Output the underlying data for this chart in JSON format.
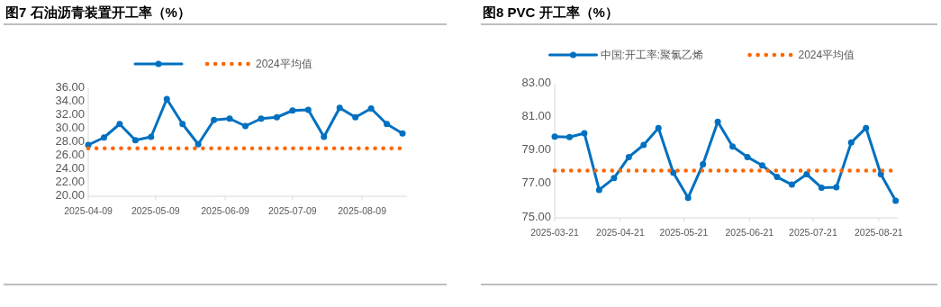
{
  "chart_data": [
    {
      "type": "line",
      "title": "图7  石油沥青装置开工率（%）",
      "legend": "top",
      "marker": "circle",
      "grid": false,
      "x": [
        "2025-04-09",
        "2025-04-16",
        "2025-04-23",
        "2025-04-30",
        "2025-05-07",
        "2025-05-14",
        "2025-05-21",
        "2025-05-28",
        "2025-06-04",
        "2025-06-11",
        "2025-06-18",
        "2025-06-25",
        "2025-07-02",
        "2025-07-09",
        "2025-07-16",
        "2025-07-23",
        "2025-07-30",
        "2025-08-06",
        "2025-08-13",
        "2025-08-20",
        "2025-08-27"
      ],
      "series": [
        {
          "color": "#0070c0",
          "values": [
            27.6,
            28.7,
            30.7,
            28.3,
            28.8,
            34.4,
            30.7,
            27.7,
            31.3,
            31.5,
            30.4,
            31.5,
            31.7,
            32.7,
            32.8,
            28.8,
            33.1,
            31.7,
            33.0,
            30.7,
            29.3
          ]
        },
        {
          "name": "2024平均值",
          "color": "#ff6600",
          "line_style": "dotted",
          "marker": "none",
          "values": [
            27.1,
            27.1,
            27.1,
            27.1,
            27.1,
            27.1,
            27.1,
            27.1,
            27.1,
            27.1,
            27.1,
            27.1,
            27.1,
            27.1,
            27.1,
            27.1,
            27.1,
            27.1,
            27.1,
            27.1,
            27.1
          ]
        }
      ],
      "xlim": [
        "2025-04-09",
        "2025-08-29"
      ],
      "xticks": [
        "2025-04-09",
        "2025-05-09",
        "2025-06-09",
        "2025-07-09",
        "2025-08-09"
      ],
      "ylim": [
        20,
        36
      ],
      "yticks": [
        {
          "value": 20,
          "label": "20.00"
        },
        {
          "value": 22,
          "label": "22.00"
        },
        {
          "value": 24,
          "label": "24.00"
        },
        {
          "value": 26,
          "label": "26.00"
        },
        {
          "value": 28,
          "label": "28.00"
        },
        {
          "value": 30,
          "label": "30.00"
        },
        {
          "value": 32,
          "label": "32.00"
        },
        {
          "value": 34,
          "label": "34.00"
        },
        {
          "value": 36,
          "label": "36.00"
        }
      ]
    },
    {
      "type": "line",
      "title": "图8  PVC 开工率（%）",
      "legend": "top",
      "marker": "circle",
      "grid": false,
      "x": [
        "2025-03-21",
        "2025-03-28",
        "2025-04-04",
        "2025-04-11",
        "2025-04-18",
        "2025-04-25",
        "2025-05-02",
        "2025-05-09",
        "2025-05-16",
        "2025-05-23",
        "2025-05-30",
        "2025-06-06",
        "2025-06-13",
        "2025-06-20",
        "2025-06-27",
        "2025-07-04",
        "2025-07-11",
        "2025-07-18",
        "2025-07-25",
        "2025-08-01",
        "2025-08-08",
        "2025-08-15",
        "2025-08-22",
        "2025-08-29"
      ],
      "series": [
        {
          "name": "中国:开工率:聚氯乙烯",
          "color": "#0070c0",
          "values": [
            79.85,
            79.82,
            80.05,
            76.67,
            77.37,
            78.63,
            79.35,
            80.36,
            77.7,
            76.2,
            78.2,
            80.73,
            79.26,
            78.63,
            78.13,
            77.44,
            76.98,
            77.6,
            76.8,
            76.83,
            79.49,
            80.36,
            77.6,
            76.02
          ]
        },
        {
          "name": "2024平均值",
          "color": "#ff6600",
          "line_style": "dotted",
          "marker": "none",
          "values": [
            77.82,
            77.82,
            77.82,
            77.82,
            77.82,
            77.82,
            77.82,
            77.82,
            77.82,
            77.82,
            77.82,
            77.82,
            77.82,
            77.82,
            77.82,
            77.82,
            77.82,
            77.82,
            77.82,
            77.82,
            77.82,
            77.82,
            77.82,
            77.82
          ]
        }
      ],
      "xlim": [
        "2025-03-21",
        "2025-08-30"
      ],
      "xticks": [
        "2025-03-21",
        "2025-04-21",
        "2025-05-21",
        "2025-06-21",
        "2025-07-21",
        "2025-08-21"
      ],
      "ylim": [
        75,
        83
      ],
      "yticks": [
        {
          "value": 75,
          "label": "75.00"
        },
        {
          "value": 77,
          "label": "77.00"
        },
        {
          "value": 79,
          "label": "79.00"
        },
        {
          "value": 81,
          "label": "81.00"
        },
        {
          "value": 83,
          "label": "83.00"
        }
      ]
    }
  ]
}
